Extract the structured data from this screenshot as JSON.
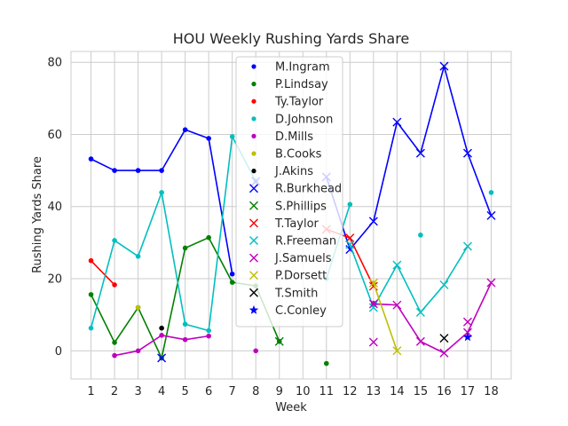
{
  "chart_data": {
    "type": "line",
    "title": "HOU Weekly Rushing Yards Share",
    "xlabel": "Week",
    "ylabel": "Rushing Yards Share",
    "xlim": [
      0.15,
      18.85
    ],
    "ylim": [
      -7.8,
      83.0
    ],
    "xticks": [
      1,
      2,
      3,
      4,
      5,
      6,
      7,
      8,
      9,
      10,
      11,
      12,
      13,
      14,
      15,
      16,
      17,
      18
    ],
    "yticks": [
      0,
      20,
      40,
      60,
      80
    ],
    "grid": true,
    "legend_position": "center",
    "series": [
      {
        "name": "M.Ingram",
        "color": "#0000ff",
        "marker": "dot",
        "x": [
          1,
          2,
          3,
          4,
          5,
          6,
          7
        ],
        "y": [
          53.2,
          50.0,
          50.0,
          50.0,
          61.3,
          58.9,
          21.3
        ]
      },
      {
        "name": "P.Lindsay",
        "color": "#008000",
        "marker": "dot",
        "x": [
          1,
          2,
          3,
          4,
          5,
          6,
          7,
          8,
          9,
          11
        ],
        "y": [
          15.6,
          2.3,
          12.0,
          -2.0,
          28.5,
          31.4,
          19.0,
          18.0,
          2.6,
          -3.5
        ]
      },
      {
        "name": "Ty.Taylor",
        "color": "#ff0000",
        "marker": "dot",
        "x": [
          1,
          2
        ],
        "y": [
          25.0,
          18.3
        ]
      },
      {
        "name": "D.Johnson",
        "color": "#00bfbf",
        "marker": "dot",
        "x": [
          1,
          2,
          3,
          4,
          5,
          6,
          7,
          8,
          11,
          12,
          15,
          18
        ],
        "y": [
          6.3,
          30.6,
          26.2,
          43.9,
          7.4,
          5.6,
          59.4,
          47.0,
          20.0,
          40.6,
          32.1,
          43.9
        ]
      },
      {
        "name": "D.Mills",
        "color": "#bf00bf",
        "marker": "dot",
        "x": [
          2,
          3,
          4,
          5,
          6,
          8
        ],
        "y": [
          -1.3,
          0.0,
          4.3,
          3.1,
          4.1,
          0.0
        ]
      },
      {
        "name": "B.Cooks",
        "color": "#bfbf00",
        "marker": "dot",
        "x": [
          3,
          13
        ],
        "y": [
          12.0,
          18.8
        ]
      },
      {
        "name": "J.Akins",
        "color": "#000000",
        "marker": "dot",
        "x": [
          4
        ],
        "y": [
          6.3
        ]
      },
      {
        "name": "R.Burkhead",
        "color": "#0000ff",
        "marker": "x",
        "x": [
          4,
          8,
          11,
          12,
          13,
          14,
          15,
          16,
          17,
          18
        ],
        "y": [
          -2.0,
          47.0,
          48.2,
          28.1,
          35.9,
          63.4,
          54.8,
          78.9,
          54.8,
          37.5
        ]
      },
      {
        "name": "S.Phillips",
        "color": "#008000",
        "marker": "x",
        "x": [
          9
        ],
        "y": [
          2.6
        ]
      },
      {
        "name": "T.Taylor",
        "color": "#ff0000",
        "marker": "x",
        "x": [
          11,
          12,
          13
        ],
        "y": [
          33.7,
          31.3,
          17.9
        ]
      },
      {
        "name": "R.Freeman",
        "color": "#00bfbf",
        "marker": "x",
        "x": [
          12,
          13,
          14,
          15,
          16,
          17
        ],
        "y": [
          29.5,
          12.0,
          23.8,
          10.7,
          18.3,
          29.0
        ]
      },
      {
        "name": "J.Samuels",
        "color": "#bf00bf",
        "marker": "x",
        "x": [
          13,
          14,
          15,
          16,
          17,
          18
        ],
        "y": [
          13.0,
          12.7,
          2.6,
          -0.6,
          5.1,
          18.9
        ]
      },
      {
        "name": "P.Dorsett",
        "color": "#bfbf00",
        "marker": "x",
        "x": [
          13,
          14
        ],
        "y": [
          18.8,
          0.0
        ]
      },
      {
        "name": "T.Smith",
        "color": "#000000",
        "marker": "x",
        "x": [
          16
        ],
        "y": [
          3.5
        ]
      },
      {
        "name": "C.Conley",
        "color": "#0000ff",
        "marker": "star",
        "x": [
          17
        ],
        "y": [
          3.8
        ]
      }
    ],
    "isolated_points": [
      {
        "series": "J.Samuels",
        "x": 13,
        "y": 2.4
      },
      {
        "series": "J.Samuels",
        "x": 17,
        "y": 8.0
      },
      {
        "series": "D.Mills",
        "x": 13,
        "y": 13.2
      }
    ]
  }
}
